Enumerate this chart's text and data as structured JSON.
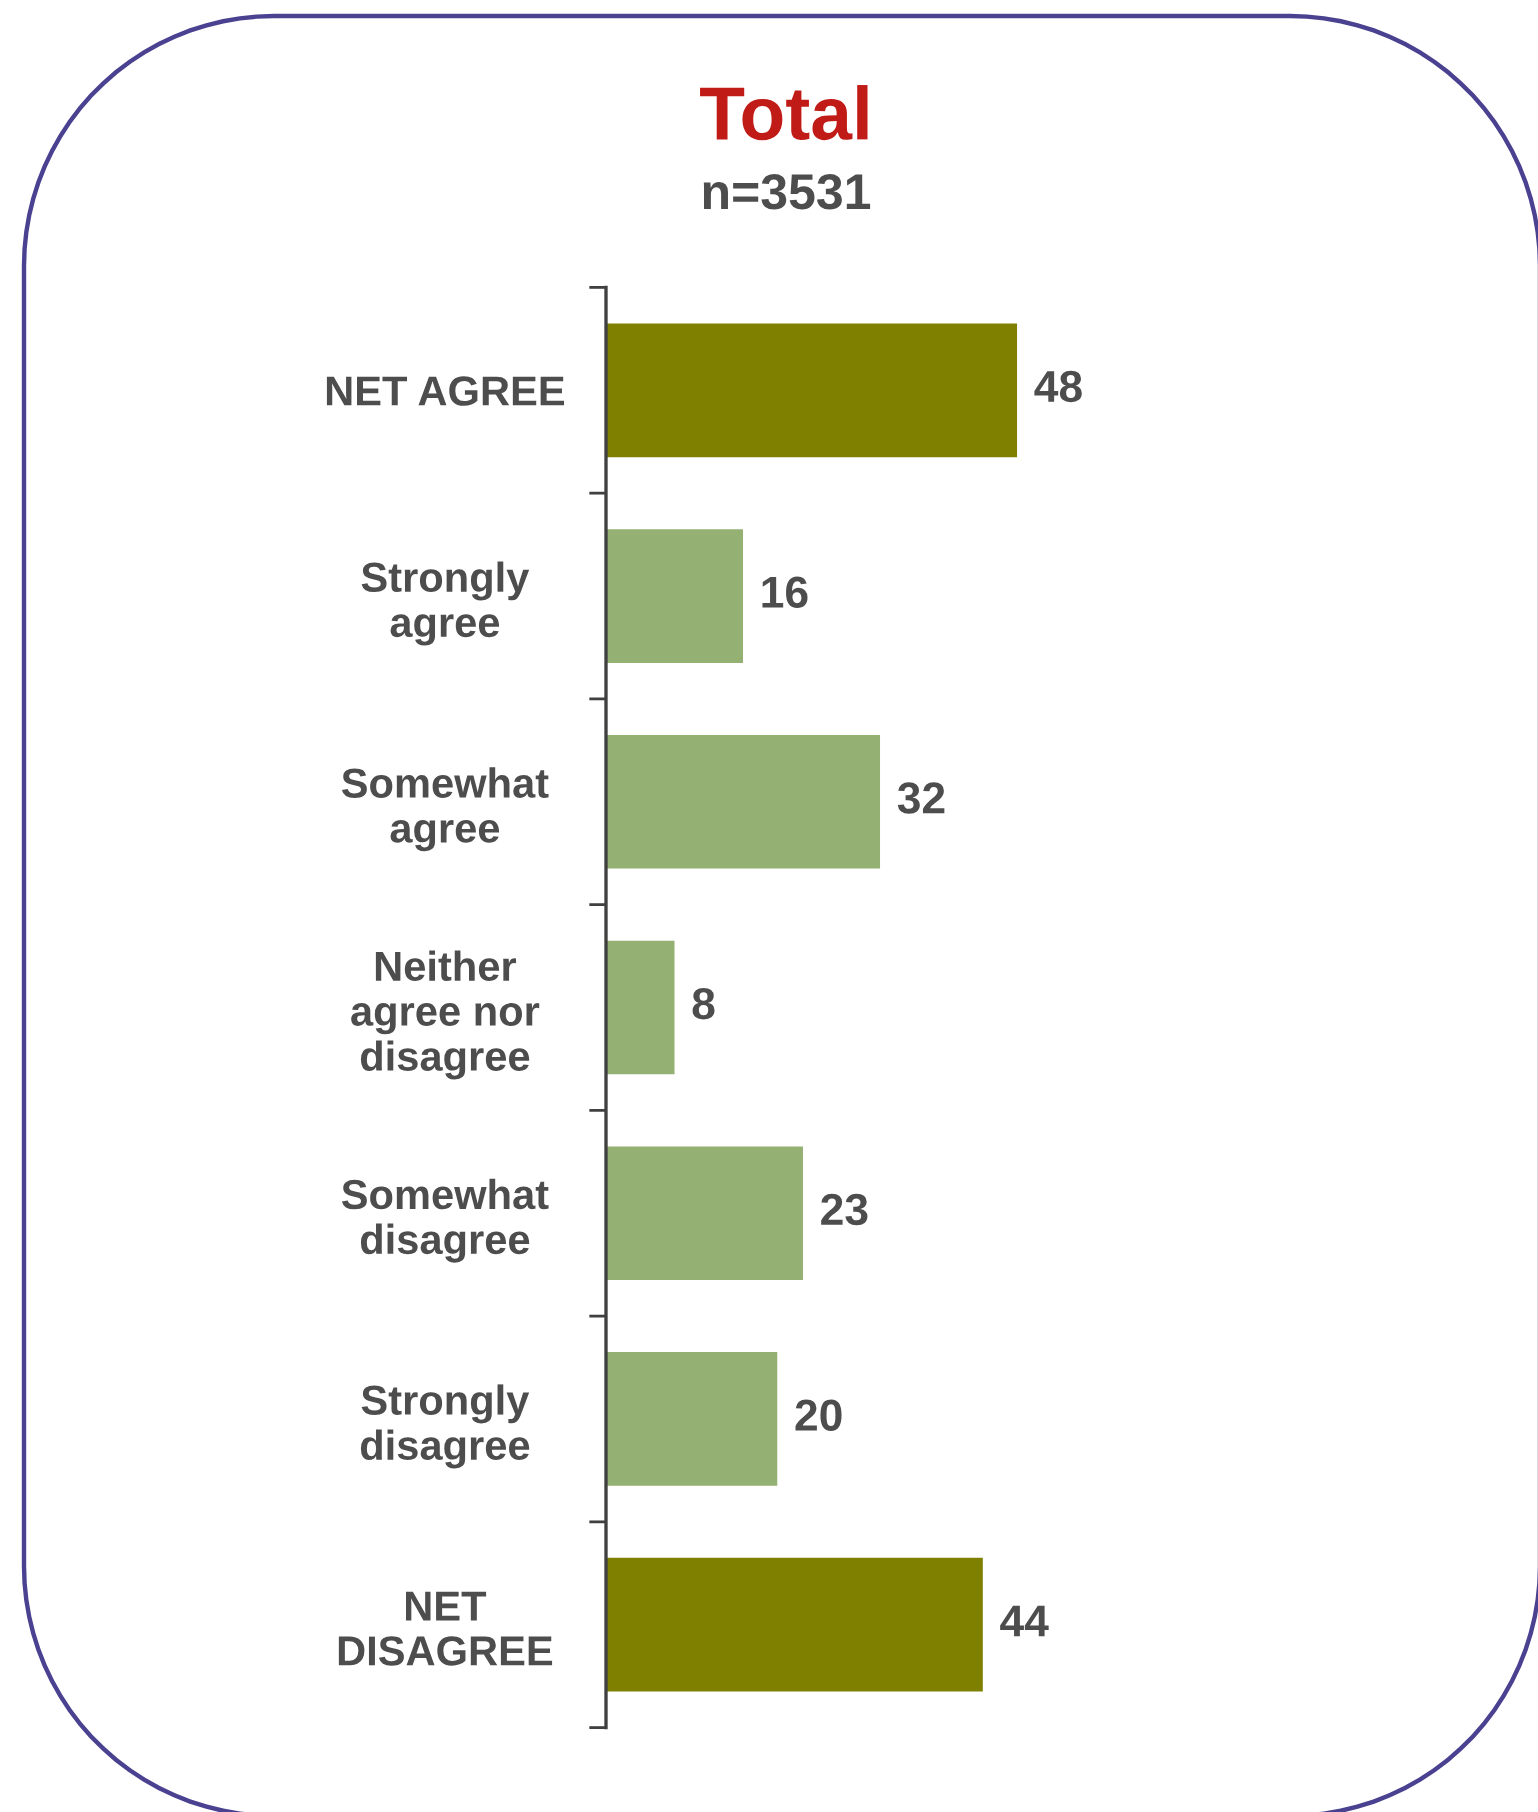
{
  "chart_data": {
    "type": "bar",
    "orientation": "horizontal",
    "title": "Total",
    "subtitle": "n=3531",
    "categories": [
      "NET AGREE",
      "Strongly\nagree",
      "Somewhat\nagree",
      "Neither\nagree nor\ndisagree",
      "Somewhat\ndisagree",
      "Strongly\ndisagree",
      "NET\nDISAGREE"
    ],
    "values": [
      48,
      16,
      32,
      8,
      23,
      20,
      44
    ],
    "colors": [
      "#808000",
      "#94b073",
      "#94b073",
      "#94b073",
      "#94b073",
      "#94b073",
      "#808000"
    ],
    "data_labels": true,
    "tick_labels": "y"
  }
}
